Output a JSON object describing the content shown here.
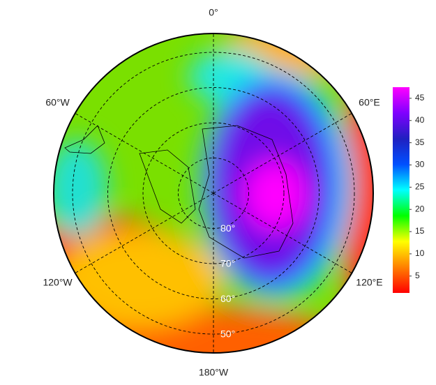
{
  "map": {
    "longitudes": [
      {
        "value": 0,
        "label": "0°"
      },
      {
        "value": 60,
        "label": "60°E"
      },
      {
        "value": 120,
        "label": "120°E"
      },
      {
        "value": 180,
        "label": "180°W"
      },
      {
        "value": -120,
        "label": "120°W"
      },
      {
        "value": -60,
        "label": "60°W"
      }
    ],
    "latitudes": [
      {
        "value": 80,
        "label": "80°"
      },
      {
        "value": 70,
        "label": "70°"
      },
      {
        "value": 60,
        "label": "60°"
      },
      {
        "value": 50,
        "label": "50°"
      }
    ]
  },
  "colorbar": {
    "range": [
      1.2,
      47.5
    ],
    "ticks": [
      5,
      10,
      15,
      20,
      25,
      30,
      35,
      40,
      45
    ],
    "colors": [
      "#ff0000",
      "#ff8000",
      "#ffff00",
      "#00ff00",
      "#00ffff",
      "#0050ff",
      "#2020c0",
      "#8000ff",
      "#ff00ff"
    ]
  }
}
